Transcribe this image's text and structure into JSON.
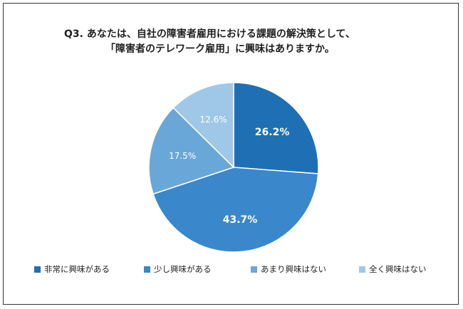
{
  "title": {
    "line1": "Q3.  あなたは、自社の障害者雇用における課題の解決策として、",
    "line2": "「障害者のテレワーク雇用」に興味はありますか。"
  },
  "chart_data": {
    "type": "pie",
    "start_angle_deg": 0,
    "direction": "clockwise",
    "slices": [
      {
        "label": "非常に興味がある",
        "value": 26.2,
        "display": "26.2%",
        "color": "#1f6fb5",
        "label_color": "#ffffff",
        "label_bold": true
      },
      {
        "label": "少し興味がある",
        "value": 43.7,
        "display": "43.7%",
        "color": "#3b87cb",
        "label_color": "#ffffff",
        "label_bold": true
      },
      {
        "label": "あまり興味はない",
        "value": 17.5,
        "display": "17.5%",
        "color": "#6aa7d9",
        "label_color": "#ffffff",
        "label_bold": false
      },
      {
        "label": "全く興味はない",
        "value": 12.6,
        "display": "12.6%",
        "color": "#9fc8e8",
        "label_color": "#ffffff",
        "label_bold": false
      }
    ],
    "legend_position": "bottom"
  }
}
